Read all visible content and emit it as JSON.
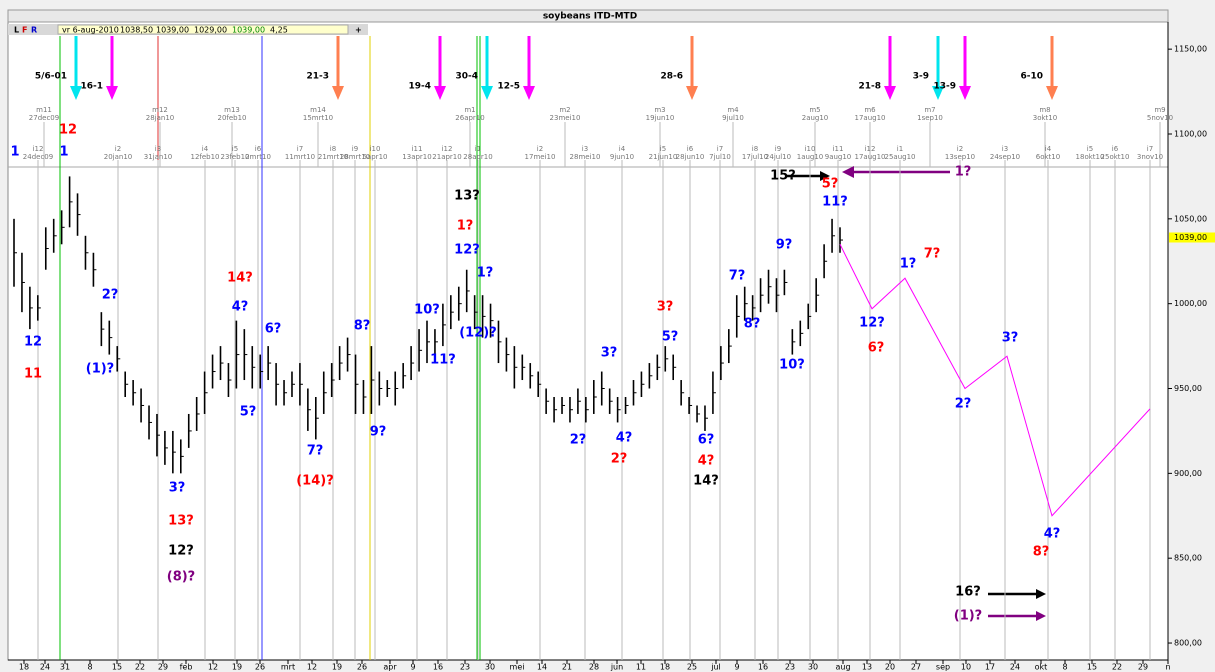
{
  "chart_data": {
    "type": "ohlc",
    "title": "soybeans ITD-MTD",
    "toolbar": [
      "L",
      "F",
      "R",
      "vr 6-aug-2010",
      "1038,50",
      "1039,00",
      "1029,00",
      "1039,00",
      "4,25",
      "+"
    ],
    "last_price": {
      "value": 1039,
      "label": "1039,00"
    },
    "ylim": [
      790,
      1166
    ],
    "yticks": [
      {
        "value": 800,
        "label": "800,00"
      },
      {
        "value": 850,
        "label": "850,00"
      },
      {
        "value": 900,
        "label": "900,00"
      },
      {
        "value": 950,
        "label": "950,00"
      },
      {
        "value": 1000,
        "label": "1000,00"
      },
      {
        "value": 1050,
        "label": "1050,00"
      },
      {
        "value": 1100,
        "label": "1100,00"
      },
      {
        "value": 1150,
        "label": "1150,00"
      }
    ],
    "x_labels": [
      "18",
      "24",
      "31",
      "8",
      "15",
      "22",
      "29",
      "feb",
      "12",
      "19",
      "26",
      "mrt",
      "12",
      "19",
      "26",
      "apr",
      "9",
      "16",
      "23",
      "30",
      "mei",
      "14",
      "21",
      "28",
      "jun",
      "11",
      "18",
      "25",
      "jul",
      "9",
      "16",
      "23",
      "30",
      "aug",
      "13",
      "20",
      "27",
      "sep",
      "10",
      "17",
      "24",
      "okt",
      "8",
      "15",
      "22",
      "29",
      "n"
    ],
    "bar_color": "#000000",
    "highs": [
      1050,
      1030,
      1010,
      1005,
      1045,
      1050,
      1055,
      1075,
      1065,
      1040,
      1030,
      995,
      990,
      975,
      960,
      955,
      950,
      940,
      935,
      925,
      925,
      920,
      935,
      945,
      960,
      970,
      975,
      965,
      990,
      985,
      975,
      970,
      975,
      965,
      955,
      960,
      965,
      950,
      945,
      960,
      965,
      975,
      980,
      970,
      955,
      975,
      960,
      955,
      960,
      965,
      975,
      985,
      990,
      985,
      1000,
      1005,
      1010,
      1020,
      1005,
      1005,
      1000,
      990,
      980,
      975,
      970,
      965,
      960,
      950,
      945,
      945,
      945,
      950,
      945,
      955,
      960,
      950,
      945,
      945,
      955,
      960,
      965,
      970,
      975,
      970,
      955,
      945,
      940,
      940,
      960,
      975,
      985,
      1005,
      1010,
      1005,
      1015,
      1020,
      1015,
      1020,
      985,
      990,
      1000,
      1015,
      1035,
      1050,
      1045
    ],
    "lows": [
      1010,
      995,
      985,
      990,
      1020,
      1030,
      1035,
      1045,
      1040,
      1020,
      1010,
      975,
      970,
      960,
      945,
      940,
      930,
      920,
      910,
      905,
      900,
      900,
      915,
      925,
      935,
      950,
      955,
      945,
      950,
      955,
      950,
      950,
      955,
      940,
      940,
      945,
      940,
      925,
      920,
      935,
      945,
      955,
      960,
      935,
      935,
      935,
      940,
      945,
      940,
      950,
      955,
      960,
      965,
      970,
      975,
      985,
      990,
      995,
      985,
      980,
      980,
      965,
      960,
      950,
      955,
      950,
      945,
      935,
      930,
      935,
      930,
      935,
      930,
      935,
      940,
      935,
      930,
      935,
      940,
      945,
      950,
      955,
      960,
      955,
      940,
      935,
      930,
      925,
      935,
      955,
      965,
      980,
      990,
      990,
      995,
      1000,
      995,
      1005,
      970,
      975,
      985,
      995,
      1015,
      1030,
      1030
    ],
    "forecast": {
      "color": "#ff00ff",
      "values": [
        1035,
        997,
        1015,
        950,
        969,
        875,
        938
      ]
    },
    "cycles_major": [
      "m11 27dec09",
      "m12 28jan10",
      "m13 20feb10",
      "m14 15mrt10",
      "m1 26apr10",
      "m2 23mei10",
      "m3 19jun10",
      "m4 9jul10",
      "m5 2aug10",
      "m6 17aug10",
      "m7 1sep10",
      "m8 3okt10",
      "m9 5nov10"
    ],
    "cycles_minor": [
      "i12 24dec09",
      "i2 20jan10",
      "i3 31jan10",
      "i4 12feb10",
      "i5 23feb10",
      "i6 2mrt10",
      "i7 11mrt10",
      "i8 21mrt10",
      "i9 28mrt10",
      "i10 5apr10",
      "i11 13apr10",
      "i12 21apr10",
      "i1 28apr10",
      "i2 17mei10",
      "i3 28mei10",
      "i4 9jun10",
      "i5 21jun10",
      "i6 28jun10",
      "i7 7jul10",
      "i8 17jul10",
      "i9 24jul10",
      "i10 1aug10",
      "i11 9aug10",
      "i12 17aug10",
      "i1 25aug10",
      "i2 13sep10",
      "i3 24sep10",
      "i4 6okt10",
      "i5 18okt10",
      "i6 25okt10",
      "i7 3nov10"
    ],
    "top_arrows": [
      {
        "label": "5/6-01",
        "color": "#00e5ee"
      },
      {
        "label": "16-1",
        "color": "#ff00ff"
      },
      {
        "label": "21-3",
        "color": "#ff7f50"
      },
      {
        "label": "19-4",
        "color": "#ff00ff"
      },
      {
        "label": "30-4",
        "color": "#00e5ee"
      },
      {
        "label": "12-5",
        "color": "#ff00ff"
      },
      {
        "label": "28-6",
        "color": "#ff7f50"
      },
      {
        "label": "21-8",
        "color": "#ff00ff"
      },
      {
        "label": "3-9",
        "color": "#00e5ee"
      },
      {
        "label": "13-9",
        "color": "#ff00ff"
      },
      {
        "label": "6-10",
        "color": "#ff7f50"
      }
    ],
    "annotations": [
      {
        "text": "1",
        "color": "#0000ff"
      },
      {
        "text": "12",
        "color": "#ff0000"
      },
      {
        "text": "1",
        "color": "#0000ff"
      },
      {
        "text": "12",
        "color": "#0000ff"
      },
      {
        "text": "11",
        "color": "#ff0000"
      },
      {
        "text": "2?",
        "color": "#0000ff"
      },
      {
        "text": "(1)?",
        "color": "#0000ff"
      },
      {
        "text": "3?",
        "color": "#0000ff"
      },
      {
        "text": "13?",
        "color": "#ff0000"
      },
      {
        "text": "12?",
        "color": "#000000"
      },
      {
        "text": "(8)?",
        "color": "#800080"
      },
      {
        "text": "14?",
        "color": "#ff0000"
      },
      {
        "text": "4?",
        "color": "#0000ff"
      },
      {
        "text": "5?",
        "color": "#0000ff"
      },
      {
        "text": "6?",
        "color": "#0000ff"
      },
      {
        "text": "7?",
        "color": "#0000ff"
      },
      {
        "text": "(14)?",
        "color": "#ff0000"
      },
      {
        "text": "8?",
        "color": "#0000ff"
      },
      {
        "text": "9?",
        "color": "#0000ff"
      },
      {
        "text": "10?",
        "color": "#0000ff"
      },
      {
        "text": "11?",
        "color": "#0000ff"
      },
      {
        "text": "13?",
        "color": "#000000"
      },
      {
        "text": "1?",
        "color": "#ff0000"
      },
      {
        "text": "12?",
        "color": "#0000ff"
      },
      {
        "text": "1?",
        "color": "#0000ff"
      },
      {
        "text": "(12)?",
        "color": "#0000ff"
      },
      {
        "text": "3?",
        "color": "#ff0000"
      },
      {
        "text": "5?",
        "color": "#0000ff"
      },
      {
        "text": "3?",
        "color": "#0000ff"
      },
      {
        "text": "2?",
        "color": "#0000ff"
      },
      {
        "text": "4?",
        "color": "#0000ff"
      },
      {
        "text": "2?",
        "color": "#ff0000"
      },
      {
        "text": "6?",
        "color": "#0000ff"
      },
      {
        "text": "4?",
        "color": "#ff0000"
      },
      {
        "text": "14?",
        "color": "#000000"
      },
      {
        "text": "7?",
        "color": "#0000ff"
      },
      {
        "text": "8?",
        "color": "#0000ff"
      },
      {
        "text": "9?",
        "color": "#0000ff"
      },
      {
        "text": "10?",
        "color": "#0000ff"
      },
      {
        "text": "15?",
        "color": "#000000"
      },
      {
        "text": "5?",
        "color": "#ff0000"
      },
      {
        "text": "11?",
        "color": "#0000ff"
      },
      {
        "text": "1?",
        "color": "#800080"
      },
      {
        "text": "12?",
        "color": "#0000ff"
      },
      {
        "text": "6?",
        "color": "#ff0000"
      },
      {
        "text": "1?",
        "color": "#0000ff"
      },
      {
        "text": "7?",
        "color": "#ff0000"
      },
      {
        "text": "3?",
        "color": "#0000ff"
      },
      {
        "text": "2?",
        "color": "#0000ff"
      },
      {
        "text": "4?",
        "color": "#0000ff"
      },
      {
        "text": "8?",
        "color": "#ff0000"
      },
      {
        "text": "16?",
        "color": "#000000"
      },
      {
        "text": "(1)?",
        "color": "#800080"
      }
    ]
  }
}
